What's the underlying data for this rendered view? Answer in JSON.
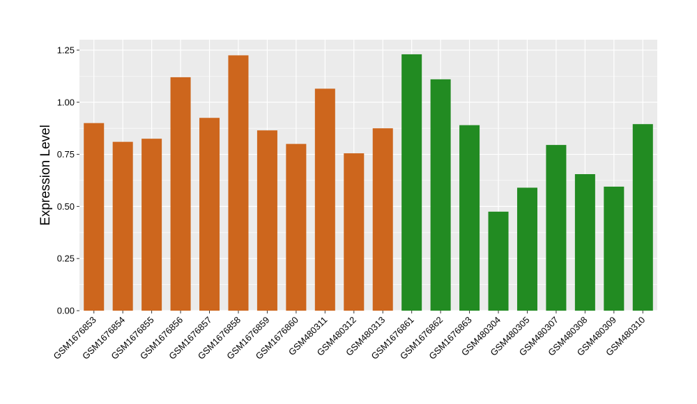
{
  "chart_data": {
    "type": "bar",
    "title": "",
    "xlabel": "",
    "ylabel": "Expression Level",
    "ylim": [
      0,
      1.3
    ],
    "y_ticks": [
      "0.00",
      "0.25",
      "0.50",
      "0.75",
      "1.00",
      "1.25"
    ],
    "grid": true,
    "legend": "none",
    "categories": [
      "GSM1676853",
      "GSM1676854",
      "GSM1676855",
      "GSM1676856",
      "GSM1676857",
      "GSM1676858",
      "GSM1676859",
      "GSM1676860",
      "GSM480311",
      "GSM480312",
      "GSM480313",
      "GSM1676861",
      "GSM1676862",
      "GSM1676863",
      "GSM480304",
      "GSM480305",
      "GSM480307",
      "GSM480308",
      "GSM480309",
      "GSM480310"
    ],
    "values": [
      0.9,
      0.81,
      0.825,
      1.12,
      0.925,
      1.225,
      0.865,
      0.8,
      1.065,
      0.755,
      0.875,
      1.23,
      1.11,
      0.89,
      0.475,
      0.59,
      0.795,
      0.655,
      0.595,
      0.895
    ],
    "groups": [
      0,
      0,
      0,
      0,
      0,
      0,
      0,
      0,
      0,
      0,
      0,
      1,
      1,
      1,
      1,
      1,
      1,
      1,
      1,
      1
    ],
    "group_colors": [
      "#CD661D",
      "#228B22"
    ],
    "panel_background": "#EBEBEB",
    "grid_color": "#FFFFFF"
  }
}
